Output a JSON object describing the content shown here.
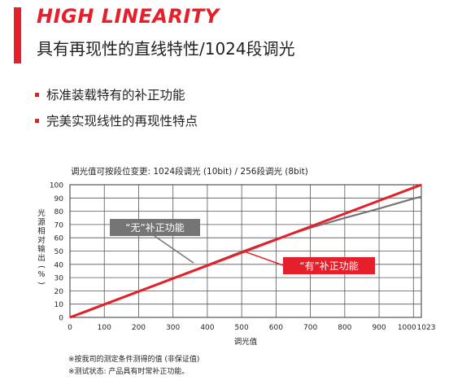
{
  "header": {
    "title": "HIGH LINEARITY",
    "subtitle": "具有再现性的直线特性/1024段调光",
    "accent_color": "#e5202a"
  },
  "bullets": [
    "标准装载特有的补正功能",
    "完美实现线性的再现性特点"
  ],
  "chart_data": {
    "type": "line",
    "title": "调光值可按段位变更: 1024段调光 (10bit) / 256段调光 (8bit)",
    "xlabel": "调光值",
    "ylabel": "光源相对输出(%)",
    "xlim": [
      0,
      1023
    ],
    "ylim": [
      0,
      100
    ],
    "x_ticks": [
      0,
      100,
      200,
      300,
      400,
      500,
      600,
      700,
      800,
      900,
      1000,
      1023
    ],
    "y_ticks": [
      0,
      10,
      20,
      30,
      40,
      50,
      60,
      70,
      80,
      90,
      100
    ],
    "grid": true,
    "series": [
      {
        "name": "“无”补正功能",
        "color": "#757575",
        "x": [
          0,
          50,
          100,
          200,
          300,
          400,
          500,
          600,
          700,
          800,
          900,
          1000,
          1023
        ],
        "y": [
          0,
          4.5,
          9.5,
          19.5,
          29.5,
          39.5,
          49.5,
          59,
          67.5,
          75,
          82,
          89.5,
          91
        ]
      },
      {
        "name": "“有”补正功能",
        "color": "#e5202a",
        "x": [
          0,
          1023
        ],
        "y": [
          0,
          100
        ]
      }
    ]
  },
  "notes": [
    "※按我司的测定条件测得的值 (非保证值)",
    "※测试状态: 产品具有时常补正功能。"
  ]
}
